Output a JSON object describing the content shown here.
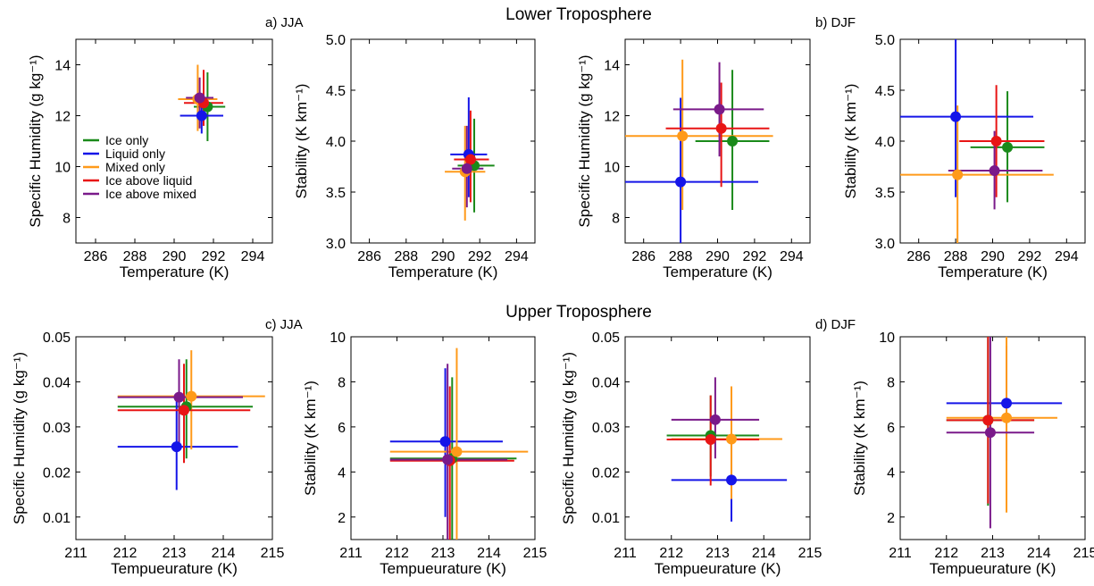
{
  "headers": {
    "lower": "Lower Troposphere",
    "upper": "Upper Troposphere"
  },
  "panel_labels": {
    "a": "a) JJA",
    "b": "b) DJF",
    "c": "c) JJA",
    "d": "d) DJF"
  },
  "legend": {
    "entries": [
      "Ice only",
      "Liquid only",
      "Mixed only",
      "Ice above liquid",
      "Ice above mixed"
    ],
    "colors": [
      "#1a8a1a",
      "#1515e8",
      "#ff9a1a",
      "#e81515",
      "#7a1a8a"
    ]
  },
  "chart_data": [
    {
      "type": "scatter",
      "error_bars": true,
      "xlabel": "Temperature (K)",
      "ylabel": "Specific Humidity (g kg⁻¹)",
      "xlim": [
        285,
        295
      ],
      "ylim": [
        7,
        15
      ],
      "xticks": [
        "286",
        "288",
        "290",
        "292",
        "294"
      ],
      "yticks": [
        "8",
        "10",
        "12",
        "14"
      ],
      "series": [
        {
          "name": "Ice only",
          "x": 291.7,
          "y": 12.35,
          "xerr": [
            291.0,
            292.6
          ],
          "yerr": [
            11.0,
            13.7
          ]
        },
        {
          "name": "Liquid only",
          "x": 291.4,
          "y": 12.0,
          "xerr": [
            290.3,
            292.5
          ],
          "yerr": [
            11.3,
            12.6
          ]
        },
        {
          "name": "Mixed only",
          "x": 291.2,
          "y": 12.65,
          "xerr": [
            290.2,
            292.2
          ],
          "yerr": [
            11.4,
            14.0
          ]
        },
        {
          "name": "Ice above liquid",
          "x": 291.5,
          "y": 12.5,
          "xerr": [
            290.5,
            292.5
          ],
          "yerr": [
            11.6,
            13.8
          ]
        },
        {
          "name": "Ice above mixed",
          "x": 291.3,
          "y": 12.7,
          "xerr": [
            290.6,
            292.0
          ],
          "yerr": [
            11.5,
            13.5
          ]
        }
      ]
    },
    {
      "type": "scatter",
      "error_bars": true,
      "xlabel": "Temperature (K)",
      "ylabel": "Stability (K km⁻¹)",
      "xlim": [
        285,
        295
      ],
      "ylim": [
        3,
        5
      ],
      "xticks": [
        "286",
        "288",
        "290",
        "292",
        "294"
      ],
      "yticks": [
        "3.0",
        "3.5",
        "4.0",
        "4.5",
        "5.0"
      ],
      "series": [
        {
          "name": "Ice only",
          "x": 291.7,
          "y": 3.76,
          "xerr": [
            290.8,
            292.8
          ],
          "yerr": [
            3.3,
            4.22
          ]
        },
        {
          "name": "Liquid only",
          "x": 291.4,
          "y": 3.87,
          "xerr": [
            290.4,
            292.4
          ],
          "yerr": [
            3.45,
            4.43
          ]
        },
        {
          "name": "Mixed only",
          "x": 291.2,
          "y": 3.7,
          "xerr": [
            290.1,
            292.3
          ],
          "yerr": [
            3.22,
            4.15
          ]
        },
        {
          "name": "Ice above liquid",
          "x": 291.5,
          "y": 3.82,
          "xerr": [
            290.6,
            292.5
          ],
          "yerr": [
            3.4,
            4.3
          ]
        },
        {
          "name": "Ice above mixed",
          "x": 291.3,
          "y": 3.73,
          "xerr": [
            290.5,
            292.2
          ],
          "yerr": [
            3.35,
            4.15
          ]
        }
      ]
    },
    {
      "type": "scatter",
      "error_bars": true,
      "xlabel": "Temperature (K)",
      "ylabel": "Specific Humidity (g kg⁻¹)",
      "xlim": [
        285,
        295
      ],
      "ylim": [
        7,
        15
      ],
      "xticks": [
        "286",
        "288",
        "290",
        "292",
        "294"
      ],
      "yticks": [
        "8",
        "10",
        "12",
        "14"
      ],
      "series": [
        {
          "name": "Ice only",
          "x": 290.8,
          "y": 11.0,
          "xerr": [
            288.8,
            292.8
          ],
          "yerr": [
            8.3,
            13.8
          ]
        },
        {
          "name": "Liquid only",
          "x": 288.0,
          "y": 9.4,
          "xerr": [
            283.8,
            292.2
          ],
          "yerr": [
            7.0,
            12.7
          ]
        },
        {
          "name": "Mixed only",
          "x": 288.1,
          "y": 11.2,
          "xerr": [
            283.2,
            293.0
          ],
          "yerr": [
            8.3,
            14.2
          ]
        },
        {
          "name": "Ice above liquid",
          "x": 290.2,
          "y": 11.5,
          "xerr": [
            287.2,
            292.8
          ],
          "yerr": [
            9.2,
            13.3
          ]
        },
        {
          "name": "Ice above mixed",
          "x": 290.1,
          "y": 12.25,
          "xerr": [
            287.6,
            292.5
          ],
          "yerr": [
            10.4,
            14.1
          ]
        }
      ]
    },
    {
      "type": "scatter",
      "error_bars": true,
      "xlabel": "Temperature (K)",
      "ylabel": "Stability (K km⁻¹)",
      "xlim": [
        285,
        295
      ],
      "ylim": [
        3,
        5
      ],
      "xticks": [
        "286",
        "288",
        "290",
        "292",
        "294"
      ],
      "yticks": [
        "3.0",
        "3.5",
        "4.0",
        "4.5",
        "5.0"
      ],
      "series": [
        {
          "name": "Ice only",
          "x": 290.8,
          "y": 3.94,
          "xerr": [
            288.8,
            292.8
          ],
          "yerr": [
            3.4,
            4.49
          ]
        },
        {
          "name": "Liquid only",
          "x": 288.0,
          "y": 4.24,
          "xerr": [
            283.7,
            292.2
          ],
          "yerr": [
            3.45,
            5.0
          ]
        },
        {
          "name": "Mixed only",
          "x": 288.1,
          "y": 3.67,
          "xerr": [
            283.2,
            293.3
          ],
          "yerr": [
            3.0,
            4.35
          ]
        },
        {
          "name": "Ice above liquid",
          "x": 290.2,
          "y": 4.0,
          "xerr": [
            288.2,
            292.8
          ],
          "yerr": [
            3.45,
            4.55
          ]
        },
        {
          "name": "Ice above mixed",
          "x": 290.1,
          "y": 3.71,
          "xerr": [
            287.6,
            292.7
          ],
          "yerr": [
            3.33,
            4.1
          ]
        }
      ]
    },
    {
      "type": "scatter",
      "error_bars": true,
      "xlabel": "Tempueurature (K)",
      "ylabel": "Specific Humidity (g kg⁻¹)",
      "xlim": [
        211,
        215
      ],
      "ylim": [
        0.005,
        0.05
      ],
      "xticks": [
        "211",
        "212",
        "213",
        "214",
        "215"
      ],
      "yticks": [
        "0.01",
        "0.02",
        "0.03",
        "0.04",
        "0.05"
      ],
      "series": [
        {
          "name": "Ice only",
          "x": 213.25,
          "y": 0.0345,
          "xerr": [
            211.85,
            214.6
          ],
          "yerr": [
            0.023,
            0.045
          ]
        },
        {
          "name": "Liquid only",
          "x": 213.05,
          "y": 0.0256,
          "xerr": [
            211.85,
            214.3
          ],
          "yerr": [
            0.016,
            0.036
          ]
        },
        {
          "name": "Mixed only",
          "x": 213.35,
          "y": 0.0368,
          "xerr": [
            211.85,
            214.85
          ],
          "yerr": [
            0.025,
            0.047
          ]
        },
        {
          "name": "Ice above liquid",
          "x": 213.2,
          "y": 0.0337,
          "xerr": [
            211.85,
            214.55
          ],
          "yerr": [
            0.022,
            0.044
          ]
        },
        {
          "name": "Ice above mixed",
          "x": 213.1,
          "y": 0.0366,
          "xerr": [
            211.85,
            214.4
          ],
          "yerr": [
            0.026,
            0.045
          ]
        }
      ]
    },
    {
      "type": "scatter",
      "error_bars": true,
      "xlabel": "Tempueurature (K)",
      "ylabel": "Stability (K km⁻¹)",
      "xlim": [
        211,
        215
      ],
      "ylim": [
        1,
        10
      ],
      "xticks": [
        "211",
        "212",
        "213",
        "214",
        "215"
      ],
      "yticks": [
        "2",
        "4",
        "6",
        "8",
        "10"
      ],
      "series": [
        {
          "name": "Ice only",
          "x": 213.2,
          "y": 4.6,
          "xerr": [
            211.85,
            214.6
          ],
          "yerr": [
            1.0,
            8.2
          ]
        },
        {
          "name": "Liquid only",
          "x": 213.05,
          "y": 5.35,
          "xerr": [
            211.85,
            214.3
          ],
          "yerr": [
            2.0,
            8.6
          ]
        },
        {
          "name": "Mixed only",
          "x": 213.3,
          "y": 4.9,
          "xerr": [
            211.85,
            214.85
          ],
          "yerr": [
            1.0,
            9.5
          ]
        },
        {
          "name": "Ice above liquid",
          "x": 213.15,
          "y": 4.5,
          "xerr": [
            211.85,
            214.55
          ],
          "yerr": [
            1.0,
            7.8
          ]
        },
        {
          "name": "Ice above mixed",
          "x": 213.1,
          "y": 4.55,
          "xerr": [
            211.85,
            214.4
          ],
          "yerr": [
            1.0,
            8.8
          ]
        }
      ]
    },
    {
      "type": "scatter",
      "error_bars": true,
      "xlabel": "Tempueurature (K)",
      "ylabel": "Specific Humidity (g kg⁻¹)",
      "xlim": [
        211,
        215
      ],
      "ylim": [
        0.005,
        0.05
      ],
      "xticks": [
        "211",
        "212",
        "213",
        "214",
        "215"
      ],
      "yticks": [
        "0.01",
        "0.02",
        "0.03",
        "0.04",
        "0.05"
      ],
      "series": [
        {
          "name": "Ice only",
          "x": 212.85,
          "y": 0.0281,
          "xerr": [
            211.9,
            213.9
          ],
          "yerr": [
            0.019,
            0.037
          ]
        },
        {
          "name": "Liquid only",
          "x": 213.3,
          "y": 0.0182,
          "xerr": [
            212.0,
            214.5
          ],
          "yerr": [
            0.009,
            0.027
          ]
        },
        {
          "name": "Mixed only",
          "x": 213.3,
          "y": 0.0273,
          "xerr": [
            212.0,
            214.4
          ],
          "yerr": [
            0.014,
            0.039
          ]
        },
        {
          "name": "Ice above liquid",
          "x": 212.85,
          "y": 0.0272,
          "xerr": [
            211.9,
            213.9
          ],
          "yerr": [
            0.017,
            0.037
          ]
        },
        {
          "name": "Ice above mixed",
          "x": 212.95,
          "y": 0.0316,
          "xerr": [
            212.0,
            213.9
          ],
          "yerr": [
            0.023,
            0.041
          ]
        }
      ]
    },
    {
      "type": "scatter",
      "error_bars": true,
      "xlabel": "Tempueurature (K)",
      "ylabel": "Stability (K km⁻¹)",
      "xlim": [
        211,
        215
      ],
      "ylim": [
        1,
        10
      ],
      "xticks": [
        "211",
        "212",
        "213",
        "214",
        "215"
      ],
      "yticks": [
        "2",
        "4",
        "6",
        "8",
        "10"
      ],
      "series": [
        {
          "name": "Ice only",
          "x": 212.9,
          "y": 6.3,
          "xerr": [
            212.0,
            213.9
          ],
          "yerr": [
            2.5,
            10.0
          ]
        },
        {
          "name": "Liquid only",
          "x": 213.3,
          "y": 7.05,
          "xerr": [
            212.0,
            214.5
          ],
          "yerr": [
            4.5,
            9.6
          ]
        },
        {
          "name": "Mixed only",
          "x": 213.3,
          "y": 6.4,
          "xerr": [
            212.0,
            214.4
          ],
          "yerr": [
            2.2,
            10.0
          ]
        },
        {
          "name": "Ice above liquid",
          "x": 212.9,
          "y": 6.3,
          "xerr": [
            212.0,
            213.9
          ],
          "yerr": [
            2.6,
            10.0
          ]
        },
        {
          "name": "Ice above mixed",
          "x": 212.95,
          "y": 5.75,
          "xerr": [
            212.0,
            213.9
          ],
          "yerr": [
            1.5,
            10.0
          ]
        }
      ]
    }
  ]
}
